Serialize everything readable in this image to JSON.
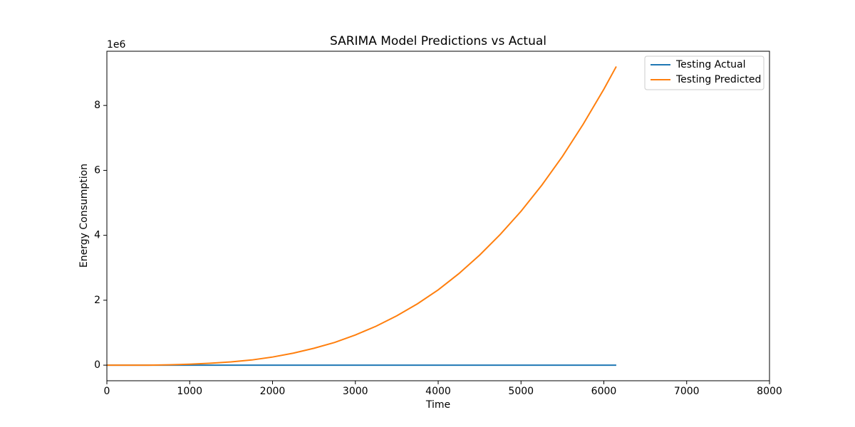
{
  "chart_data": {
    "type": "line",
    "title": "SARIMA Model Predictions vs Actual",
    "x_label": "Time",
    "y_label": "Energy Consumption",
    "y_offset_label": "1e6",
    "x": [
      0,
      250,
      500,
      750,
      1000,
      1250,
      1500,
      1750,
      2000,
      2250,
      2500,
      2750,
      3000,
      3250,
      3500,
      3750,
      4000,
      4250,
      4500,
      4750,
      5000,
      5250,
      5500,
      5750,
      6000,
      6150
    ],
    "series": [
      {
        "name": "Testing Actual",
        "color": "#1f77b4",
        "values": [
          0,
          0,
          0,
          0,
          0,
          0,
          0,
          0,
          0,
          0,
          0,
          0,
          0,
          0,
          0,
          0,
          0,
          0,
          0,
          0,
          0,
          0,
          0,
          0,
          0,
          0
        ]
      },
      {
        "name": "Testing Predicted",
        "color": "#ff7f0e",
        "values": [
          0,
          0,
          0,
          0.01,
          0.03,
          0.06,
          0.1,
          0.16,
          0.25,
          0.37,
          0.52,
          0.7,
          0.93,
          1.2,
          1.52,
          1.89,
          2.32,
          2.82,
          3.39,
          4.03,
          4.74,
          5.54,
          6.43,
          7.42,
          8.5,
          9.2
        ]
      }
    ],
    "xlim": [
      0,
      8000
    ],
    "xticks": [
      0,
      1000,
      2000,
      3000,
      4000,
      5000,
      6000,
      7000,
      8000
    ],
    "ylim": [
      -0.48,
      9.67
    ],
    "yticks": [
      0,
      2,
      4,
      6,
      8
    ],
    "grid": false,
    "legend": "upper right"
  }
}
